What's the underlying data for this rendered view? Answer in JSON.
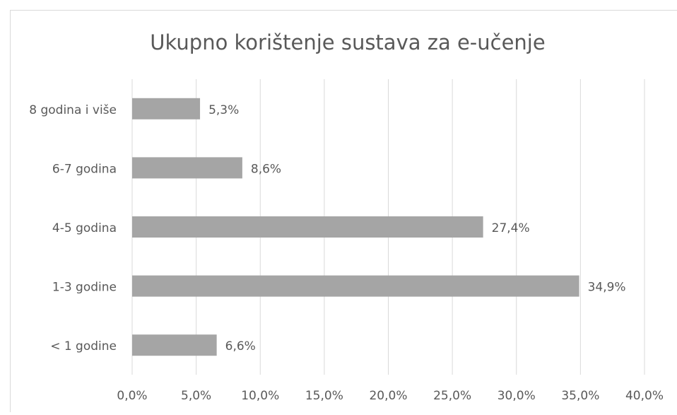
{
  "chart_data": {
    "type": "bar",
    "orientation": "horizontal",
    "title": "Ukupno korištenje sustava za e-učenje",
    "categories": [
      "8 godina i više",
      "6-7 godina",
      "4-5 godina",
      "1-3 godine",
      "< 1 godine"
    ],
    "values": [
      5.3,
      8.6,
      27.4,
      34.9,
      6.6
    ],
    "value_labels": [
      "5,3%",
      "8,6%",
      "27,4%",
      "34,9%",
      "6,6%"
    ],
    "color": "#a5a5a5",
    "xlim": [
      0,
      40
    ],
    "xticks": [
      {
        "value": 0,
        "label": "0,0%"
      },
      {
        "value": 5,
        "label": "5,0%"
      },
      {
        "value": 10,
        "label": "10,0%"
      },
      {
        "value": 15,
        "label": "15,0%"
      },
      {
        "value": 20,
        "label": "20,0%"
      },
      {
        "value": 25,
        "label": "25,0%"
      },
      {
        "value": 30,
        "label": "30,0%"
      },
      {
        "value": 35,
        "label": "35,0%"
      },
      {
        "value": 40,
        "label": "40,0%"
      }
    ],
    "grid": true
  }
}
